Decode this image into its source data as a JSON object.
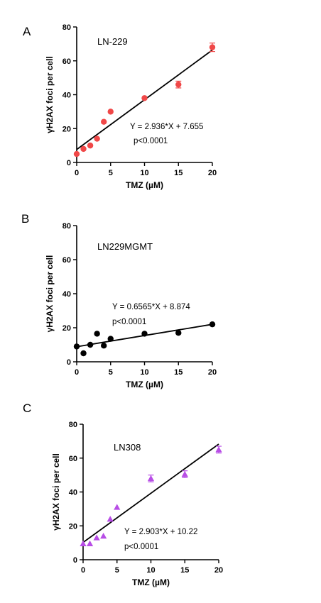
{
  "chart_data": [
    {
      "panel": "A",
      "type": "scatter",
      "series_label": "LN-229",
      "xlabel": "TMZ (µM)",
      "ylabel": "γH2AX foci per cell",
      "xlim": [
        0,
        20
      ],
      "ylim": [
        0,
        80
      ],
      "xticks": [
        0,
        5,
        10,
        15,
        20
      ],
      "yticks": [
        0,
        20,
        40,
        60,
        80
      ],
      "marker": "circle",
      "color": "#f04848",
      "x": [
        0,
        1,
        2,
        3,
        4,
        5,
        10,
        15,
        20
      ],
      "y": [
        5,
        8,
        10,
        14,
        24,
        30,
        38,
        46,
        68
      ],
      "error": [
        0,
        0,
        0,
        0,
        0,
        0,
        0,
        2,
        2.5
      ],
      "fit": {
        "slope": 2.936,
        "intercept": 7.655
      },
      "equation": "Y = 2.936*X + 7.655",
      "pvalue": "p<0.0001"
    },
    {
      "panel": "B",
      "type": "scatter",
      "series_label": "LN229MGMT",
      "xlabel": "TMZ (µM)",
      "ylabel": "γH2AX foci per cell",
      "xlim": [
        0,
        20
      ],
      "ylim": [
        0,
        80
      ],
      "xticks": [
        0,
        5,
        10,
        15,
        20
      ],
      "yticks": [
        0,
        20,
        40,
        60,
        80
      ],
      "marker": "circle",
      "color": "#000000",
      "x": [
        0,
        1,
        2,
        3,
        4,
        5,
        10,
        15,
        20
      ],
      "y": [
        9,
        5,
        10,
        16.5,
        9.5,
        13.5,
        16.5,
        17,
        22
      ],
      "error": [
        0,
        0,
        0,
        0,
        0,
        0,
        0,
        0,
        0
      ],
      "fit": {
        "slope": 0.6565,
        "intercept": 8.874
      },
      "equation": "Y = 0.6565*X + 8.874",
      "pvalue": "p<0.0001"
    },
    {
      "panel": "C",
      "type": "scatter",
      "series_label": "LN308",
      "xlabel": "TMZ (µM)",
      "ylabel": "γH2AX foci per cell",
      "xlim": [
        0,
        20
      ],
      "ylim": [
        0,
        80
      ],
      "xticks": [
        0,
        5,
        10,
        15,
        20
      ],
      "yticks": [
        0,
        20,
        40,
        60,
        80
      ],
      "marker": "triangle",
      "color": "#b84ee6",
      "x": [
        0,
        1,
        2,
        3,
        4,
        5,
        10,
        15,
        20
      ],
      "y": [
        9.5,
        9.5,
        13,
        14,
        24,
        31,
        48,
        50.5,
        65
      ],
      "error": [
        0,
        0,
        0,
        0,
        0,
        0,
        2,
        2,
        2
      ],
      "fit": {
        "slope": 2.903,
        "intercept": 10.22
      },
      "equation": "Y = 2.903*X + 10.22",
      "pvalue": "p<0.0001"
    }
  ]
}
